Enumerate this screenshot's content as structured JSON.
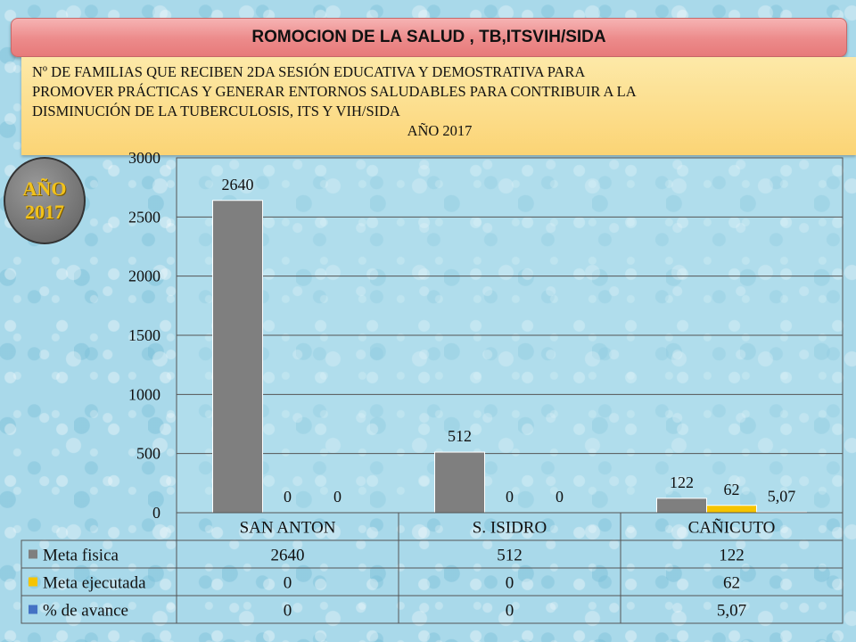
{
  "header": {
    "title": "ROMOCION DE LA SALUD , TB,ITSVIH/SIDA"
  },
  "subtitle": {
    "line1": "Nº  DE FAMILIAS QUE RECIBEN 2DA SESIÓN EDUCATIVA Y DEMOSTRATIVA PARA",
    "line2": "PROMOVER PRÁCTICAS Y GENERAR ENTORNOS SALUDABLES PARA CONTRIBUIR A LA",
    "line3": "DISMINUCIÓN DE LA TUBERCULOSIS, ITS Y VIH/SIDA",
    "year": "AÑO 2017"
  },
  "badge": {
    "line1": "AÑO",
    "line2": "2017"
  },
  "chart_data": {
    "type": "bar",
    "categories": [
      "SAN ANTON",
      "S. ISIDRO",
      "CAÑICUTO"
    ],
    "series": [
      {
        "name": "Meta fisica",
        "values": [
          2640,
          512,
          122
        ],
        "labels": [
          "2640",
          "512",
          "122"
        ],
        "color": "#7f7f7f"
      },
      {
        "name": "Meta ejecutada",
        "values": [
          0,
          0,
          62
        ],
        "labels": [
          "0",
          "0",
          "62"
        ],
        "color": "#f5c400"
      },
      {
        "name": "% de avance",
        "values": [
          0,
          0,
          5.07
        ],
        "labels": [
          "0",
          "0",
          "5,07"
        ],
        "color": "#4472c4"
      }
    ],
    "ylim": [
      0,
      3000
    ],
    "yticks": [
      0,
      500,
      1000,
      1500,
      2000,
      2500,
      3000
    ],
    "grid": true,
    "legend": "data-table",
    "title": "",
    "xlabel": "",
    "ylabel": ""
  }
}
